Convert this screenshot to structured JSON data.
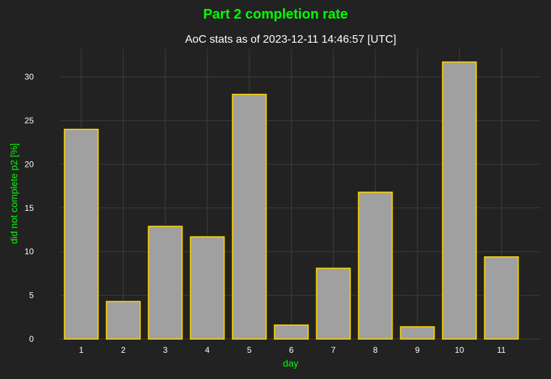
{
  "figure": {
    "suptitle": "Part 2 completion rate",
    "background": "#222222"
  },
  "chart_data": {
    "type": "bar",
    "title": "AoC stats as of 2023-12-11 14:46:57 [UTC]",
    "xlabel": "day",
    "ylabel": "did not complete p2 [%]",
    "categories": [
      "1",
      "2",
      "3",
      "4",
      "5",
      "6",
      "7",
      "8",
      "9",
      "10",
      "11"
    ],
    "values": [
      24.0,
      4.3,
      12.9,
      11.7,
      28.0,
      1.6,
      8.1,
      16.8,
      1.4,
      31.7,
      9.4
    ],
    "ylim": [
      0,
      33.2
    ],
    "yticks": [
      0,
      5,
      10,
      15,
      20,
      25,
      30
    ],
    "grid": true,
    "legend": "none",
    "colors": {
      "bar_fill": "#a0a0a0",
      "bar_edge": "#ffd700",
      "grid": "#3d3d3d",
      "label_accent": "#00ff00",
      "text": "#ffffff"
    }
  }
}
